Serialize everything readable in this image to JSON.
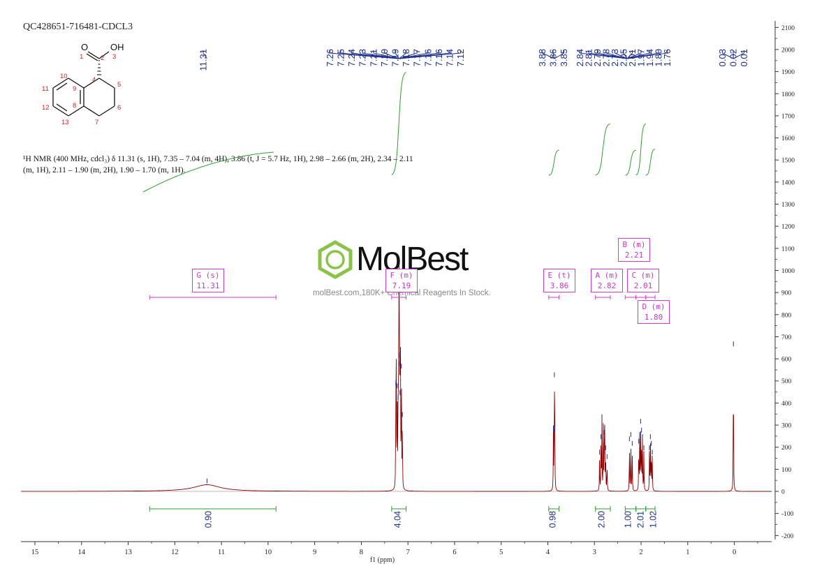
{
  "sample_id": "QC428651-716481-CDCL3",
  "structure": {
    "atom_labels": {
      "O": "O",
      "OH": "OH",
      "n1": "1",
      "n2": "2",
      "n3": "3",
      "n4": "4",
      "n5": "5",
      "n6": "6",
      "n7": "7",
      "n8": "8",
      "n9": "9",
      "n10": "10",
      "n11": "11",
      "n12": "12",
      "n13": "13"
    }
  },
  "nmr_description": "¹H NMR (400 MHz, cdcl₃) δ 11.31 (s, 1H), 7.35 – 7.04 (m, 4H), 3.86 (t, J = 5.7 Hz, 1H), 2.98 – 2.66 (m, 2H), 2.34 – 2.11 (m, 1H), 2.11 – 1.90 (m, 2H), 1.90 – 1.70 (m, 1H).",
  "watermark": {
    "brand": "MolBest",
    "tagline": "molBest.com,180K+ Chemical Reagents In Stock."
  },
  "colors": {
    "spectrum": "#8b0000",
    "integral": "#2e9e2e",
    "peak_label": "#1c2e8c",
    "multiplet_box": "#d23ad2",
    "logo_green": "#8bc34a"
  },
  "chart_data": {
    "type": "line",
    "title": "",
    "xlabel": "f1 (ppm)",
    "ylabel": "",
    "x_reversed": true,
    "xlim": [
      15.3,
      -0.8
    ],
    "ylim": [
      -200,
      2100
    ],
    "x_ticks": [
      15,
      14,
      13,
      12,
      11,
      10,
      9,
      8,
      7,
      6,
      5,
      4,
      3,
      2,
      1,
      0
    ],
    "y_ticks": [
      -200,
      -100,
      0,
      100,
      200,
      300,
      400,
      500,
      600,
      700,
      800,
      900,
      1000,
      1100,
      1200,
      1300,
      1400,
      1500,
      1600,
      1700,
      1800,
      1900,
      2000,
      2100
    ],
    "peak_groups": [
      {
        "labels": [
          "11.31"
        ],
        "anchor": 11.31
      },
      {
        "labels": [
          "7.26",
          "7.25",
          "7.24",
          "7.23",
          "7.21",
          "7.20",
          "7.19",
          "7.18",
          "7.17",
          "7.16",
          "7.16",
          "7.14",
          "7.12"
        ],
        "anchor": 7.19
      },
      {
        "labels": [
          "3.88",
          "3.86",
          "3.85"
        ],
        "anchor": 3.86
      },
      {
        "labels": [
          "2.84",
          "2.81",
          "2.79",
          "2.78",
          "2.73",
          "2.05",
          "2.01",
          "1.97",
          "1.94",
          "1.80",
          "1.76"
        ],
        "anchor": 2.3
      },
      {
        "labels": [
          "0.03",
          "0.02",
          "0.01"
        ],
        "anchor": 0.02
      }
    ],
    "peaks": [
      {
        "ppm": 11.31,
        "height": 30,
        "width": 0.35,
        "shape": "broad"
      },
      {
        "ppm": 7.26,
        "height": 470
      },
      {
        "ppm": 7.25,
        "height": 500
      },
      {
        "ppm": 7.23,
        "height": 460
      },
      {
        "ppm": 7.21,
        "height": 410
      },
      {
        "ppm": 7.2,
        "height": 560
      },
      {
        "ppm": 7.19,
        "height": 810
      },
      {
        "ppm": 7.18,
        "height": 600
      },
      {
        "ppm": 7.17,
        "height": 430
      },
      {
        "ppm": 7.16,
        "height": 520
      },
      {
        "ppm": 7.14,
        "height": 550
      },
      {
        "ppm": 7.12,
        "height": 330
      },
      {
        "ppm": 3.88,
        "height": 270
      },
      {
        "ppm": 3.86,
        "height": 510
      },
      {
        "ppm": 3.85,
        "height": 260
      },
      {
        "ppm": 2.89,
        "height": 160
      },
      {
        "ppm": 2.86,
        "height": 230
      },
      {
        "ppm": 2.84,
        "height": 320
      },
      {
        "ppm": 2.81,
        "height": 280
      },
      {
        "ppm": 2.79,
        "height": 250
      },
      {
        "ppm": 2.78,
        "height": 260
      },
      {
        "ppm": 2.76,
        "height": 180
      },
      {
        "ppm": 2.73,
        "height": 140
      },
      {
        "ppm": 2.25,
        "height": 220
      },
      {
        "ppm": 2.22,
        "height": 240
      },
      {
        "ppm": 2.19,
        "height": 200
      },
      {
        "ppm": 2.05,
        "height": 210
      },
      {
        "ppm": 2.03,
        "height": 240
      },
      {
        "ppm": 2.01,
        "height": 300
      },
      {
        "ppm": 1.99,
        "height": 260
      },
      {
        "ppm": 1.97,
        "height": 230
      },
      {
        "ppm": 1.94,
        "height": 180
      },
      {
        "ppm": 1.82,
        "height": 180
      },
      {
        "ppm": 1.8,
        "height": 230
      },
      {
        "ppm": 1.78,
        "height": 200
      },
      {
        "ppm": 1.76,
        "height": 160
      },
      {
        "ppm": 0.02,
        "height": 650
      }
    ],
    "multiplets": [
      {
        "label": "G (s)",
        "value": "11.31",
        "range": [
          12.54,
          9.83
        ]
      },
      {
        "label": "F (m)",
        "value": "7.19",
        "range": [
          7.35,
          7.04
        ]
      },
      {
        "label": "E (t)",
        "value": "3.86",
        "range": [
          3.98,
          3.76
        ]
      },
      {
        "label": "A (m)",
        "value": "2.82",
        "range": [
          2.98,
          2.66
        ]
      },
      {
        "label": "B (m)",
        "value": "2.21",
        "range": [
          2.34,
          2.11
        ]
      },
      {
        "label": "C (m)",
        "value": "2.01",
        "range": [
          2.11,
          1.9
        ]
      },
      {
        "label": "D (m)",
        "value": "1.80",
        "range": [
          1.9,
          1.7
        ]
      }
    ],
    "integrals": [
      {
        "range": [
          12.54,
          9.83
        ],
        "value": "0.90"
      },
      {
        "range": [
          7.35,
          7.04
        ],
        "value": "4.04"
      },
      {
        "range": [
          3.98,
          3.76
        ],
        "value": "0.98"
      },
      {
        "range": [
          2.98,
          2.66
        ],
        "value": "2.00"
      },
      {
        "range": [
          2.34,
          2.11
        ],
        "value": "1.00"
      },
      {
        "range": [
          2.11,
          1.9
        ],
        "value": "2.01"
      },
      {
        "range": [
          1.9,
          1.7
        ],
        "value": "1.02"
      }
    ]
  }
}
